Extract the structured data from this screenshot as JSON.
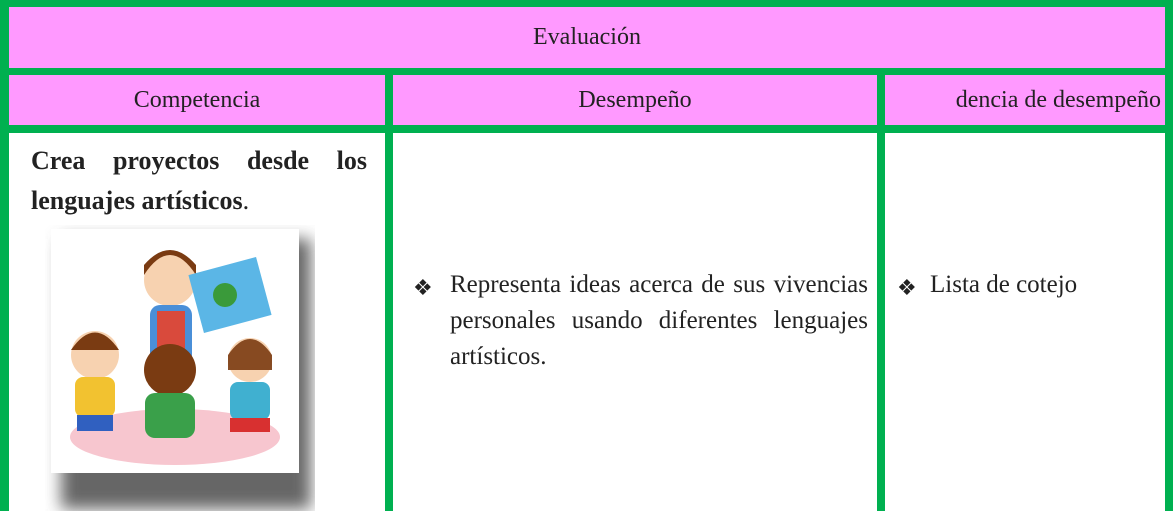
{
  "table": {
    "title": "Evaluación",
    "headers": [
      "Competencia",
      "Desempeño",
      "dencia de desempeño"
    ],
    "rows": [
      {
        "competencia_bold": "Crea proyectos desde los lenguajes artísticos",
        "competencia_suffix": ".",
        "marker": "❖",
        "desempeno": "Representa ideas acerca de sus vivencias personales usando diferentes lenguajes artísticos.",
        "evidencia": "Lista de cotejo"
      }
    ]
  }
}
